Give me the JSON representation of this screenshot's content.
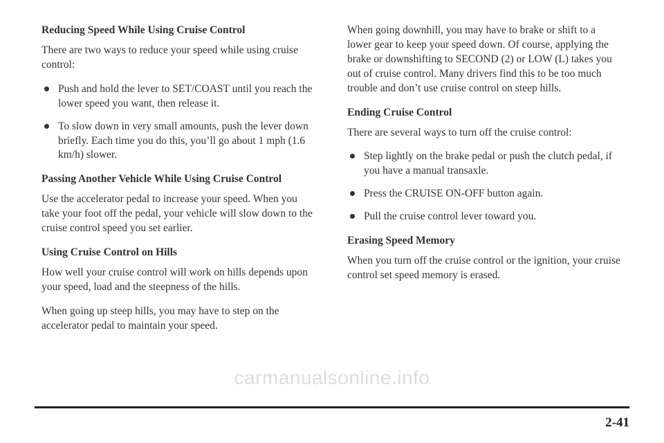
{
  "left": {
    "h1": "Reducing Speed While Using Cruise Control",
    "p1": "There are two ways to reduce your speed while using cruise control:",
    "bullets1": [
      "Push and hold the lever to SET/COAST until you reach the lower speed you want, then release it.",
      "To slow down in very small amounts, push the lever down briefly. Each time you do this, you’ll go about 1 mph (1.6 km/h) slower."
    ],
    "h2": "Passing Another Vehicle While Using Cruise Control",
    "p2": "Use the accelerator pedal to increase your speed. When you take your foot off the pedal, your vehicle will slow down to the cruise control speed you set earlier.",
    "h3": "Using Cruise Control on Hills",
    "p3": "How well your cruise control will work on hills depends upon your speed, load and the steepness of the hills.",
    "p4": "When going up steep hills, you may have to step on the accelerator pedal to maintain your speed."
  },
  "right": {
    "p1": "When going downhill, you may have to brake or shift to a lower gear to keep your speed down. Of course, applying the brake or downshifting to SECOND (2) or LOW (L) takes you out of cruise control. Many drivers find this to be too much trouble and don’t use cruise control on steep hills.",
    "h1": "Ending Cruise Control",
    "p2": "There are several ways to turn off the cruise control:",
    "bullets1": [
      "Step lightly on the brake pedal or push the clutch pedal, if you have a manual transaxle.",
      "Press the CRUISE ON-OFF button again.",
      "Pull the cruise control lever toward you."
    ],
    "h2": "Erasing Speed Memory",
    "p3": "When you turn off the cruise control or the ignition, your cruise control set speed memory is erased."
  },
  "pageNumber": "2-41",
  "watermark": "carmanualsonline.info"
}
